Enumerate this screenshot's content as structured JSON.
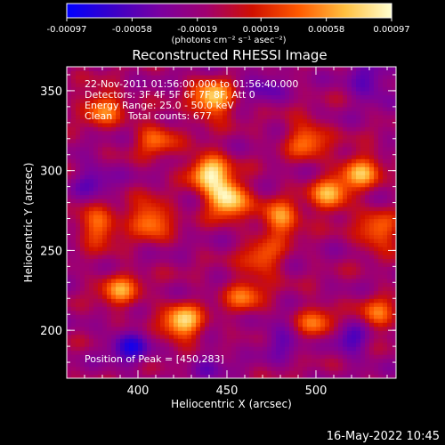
{
  "colorbar": {
    "tick_labels": [
      "-0.00097",
      "-0.00058",
      "-0.00019",
      "0.00019",
      "0.00058",
      "0.00097"
    ],
    "ticks": [
      -0.00097,
      -0.00058,
      -0.00019,
      0.00019,
      0.00058,
      0.00097
    ],
    "range": [
      -0.00097,
      0.00097
    ],
    "units": "(photons cm⁻² s⁻¹ asec⁻²)",
    "colors": [
      "#0000ff",
      "#3b00c8",
      "#7a00a0",
      "#a00070",
      "#d01000",
      "#ff5a00",
      "#ffc040",
      "#ffffd0"
    ]
  },
  "chart_data": {
    "type": "heatmap",
    "title": "Reconstructed RHESSI Image",
    "xlabel": "Heliocentric X (arcsec)",
    "ylabel": "Heliocentric Y (arcsec)",
    "xlim": [
      360,
      545
    ],
    "ylim": [
      170,
      365
    ],
    "xticks": [
      400,
      450,
      500
    ],
    "yticks": [
      200,
      250,
      300,
      350
    ],
    "xtick_labels": [
      "400",
      "450",
      "500"
    ],
    "ytick_labels": [
      "200",
      "250",
      "300",
      "350"
    ],
    "peak": [
      450,
      283
    ],
    "sources": [
      {
        "x": 450,
        "y": 283,
        "value": 0.00097
      },
      {
        "x": 440,
        "y": 300,
        "value": 0.0008
      },
      {
        "x": 442,
        "y": 345,
        "value": 0.0008
      },
      {
        "x": 425,
        "y": 205,
        "value": 0.0008
      },
      {
        "x": 407,
        "y": 270,
        "value": 0.0006
      },
      {
        "x": 378,
        "y": 265,
        "value": 0.0005
      },
      {
        "x": 480,
        "y": 270,
        "value": 0.0006
      },
      {
        "x": 508,
        "y": 285,
        "value": 0.0006
      },
      {
        "x": 525,
        "y": 300,
        "value": 0.0006
      },
      {
        "x": 535,
        "y": 262,
        "value": 0.0005
      },
      {
        "x": 495,
        "y": 320,
        "value": 0.0005
      },
      {
        "x": 380,
        "y": 340,
        "value": 0.0005
      },
      {
        "x": 390,
        "y": 225,
        "value": 0.0005
      },
      {
        "x": 470,
        "y": 245,
        "value": 0.0004
      },
      {
        "x": 500,
        "y": 205,
        "value": 0.0004
      },
      {
        "x": 535,
        "y": 210,
        "value": 0.0004
      },
      {
        "x": 410,
        "y": 320,
        "value": 0.0004
      },
      {
        "x": 460,
        "y": 222,
        "value": 0.0004
      },
      {
        "x": 395,
        "y": 190,
        "value": -0.0007
      },
      {
        "x": 530,
        "y": 355,
        "value": -0.0006
      },
      {
        "x": 470,
        "y": 355,
        "value": -0.0005
      },
      {
        "x": 520,
        "y": 195,
        "value": -0.0006
      },
      {
        "x": 375,
        "y": 295,
        "value": -0.0005
      },
      {
        "x": 480,
        "y": 195,
        "value": -0.0005
      },
      {
        "x": 440,
        "y": 180,
        "value": -0.0004
      }
    ]
  },
  "info": {
    "line1": "22-Nov-2011 01:56:00.000 to 01:56:40.000",
    "line2": "Detectors: 3F 4F 5F 6F 7F 8F, Att 0",
    "line3": "Energy Range: 25.0 - 50.0 keV",
    "line4": "Clean     Total counts: 677",
    "peak_label": "Position of Peak = [450,283]"
  },
  "footer": {
    "date": "16-May-2022 10:45"
  }
}
